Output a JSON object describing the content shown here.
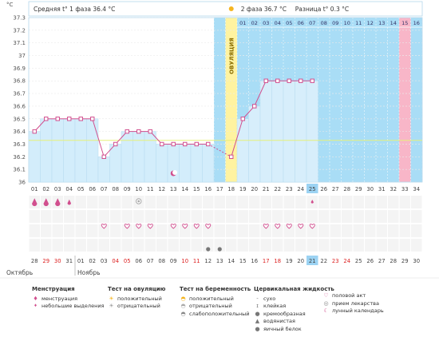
{
  "header": {
    "unit": "°C",
    "phase1": "Средняя t° 1 фаза 36.4 °C",
    "phase2": "2 фаза 36.7 °C",
    "diff": "Разница t° 0.3 °C"
  },
  "ovulation_label": "ОВУЛЯЦИЯ",
  "colors": {
    "phase1_bg": "#ffffff",
    "phase2_bg": "#a9ddf6",
    "ovulation": "#fff3a0",
    "pink": "#f8b6c8",
    "blue": "#9cd3f3",
    "bar": "#d3edfb",
    "line": "#d14f8e",
    "cover": "#a9ddf6",
    "sun": "#f5b520"
  },
  "chart_data": {
    "type": "line",
    "ylim": [
      36.0,
      37.3
    ],
    "y_ticks": [
      "37.3",
      "37.2",
      "37.1",
      "37",
      "36.9",
      "36.8",
      "36.7",
      "36.6",
      "36.5",
      "36.4",
      "36.3",
      "36.2",
      "36.1",
      "36"
    ],
    "cycle_day_labels": [
      "01",
      "02",
      "03",
      "04",
      "05",
      "06",
      "07",
      "08",
      "09",
      "10",
      "11",
      "12",
      "13",
      "14",
      "15",
      "16",
      "17",
      "18",
      "19",
      "20",
      "21",
      "22",
      "23",
      "24",
      "25",
      "26",
      "27",
      "28",
      "29",
      "30",
      "31",
      "32",
      "33",
      "34"
    ],
    "top_day_labels": [
      "",
      "",
      "",
      "",
      "",
      "",
      "",
      "",
      "",
      "",
      "",
      "",
      "",
      "",
      "",
      "",
      "",
      "",
      "01",
      "02",
      "03",
      "04",
      "05",
      "06",
      "07",
      "08",
      "09",
      "10",
      "11",
      "12",
      "13",
      "14",
      "15",
      "16"
    ],
    "temperatures": [
      36.4,
      36.5,
      36.5,
      36.5,
      36.5,
      36.5,
      36.2,
      36.3,
      36.4,
      36.4,
      36.4,
      36.3,
      36.3,
      36.3,
      36.3,
      36.3,
      null,
      36.2,
      36.5,
      36.6,
      36.8,
      36.8,
      36.8,
      36.8,
      36.8,
      null,
      null,
      null,
      null,
      null,
      null,
      null,
      null,
      null
    ],
    "baseline": 36.33,
    "calendar_dates": [
      "28",
      "29",
      "30",
      "31",
      "01",
      "02",
      "03",
      "04",
      "05",
      "06",
      "07",
      "08",
      "09",
      "10",
      "11",
      "12",
      "13",
      "14",
      "15",
      "16",
      "17",
      "18",
      "19",
      "20",
      "21",
      "22",
      "23",
      "24",
      "25",
      "26",
      "27",
      "28",
      "29",
      "30"
    ],
    "red_dates_index": [
      1,
      2,
      7,
      8,
      13,
      14,
      20,
      21,
      26,
      27
    ],
    "months": [
      "Октябрь",
      "Ноябрь"
    ],
    "highlighted_day_index": 24,
    "ovulation_day_index": 17,
    "pink_day_index": 32,
    "menstruation_days": [
      0,
      1,
      2,
      3
    ],
    "ovulation_test_days": [
      9
    ],
    "intercourse_days": [
      6,
      8,
      9,
      10,
      12,
      13,
      14,
      15,
      20,
      21,
      22,
      23,
      24
    ],
    "cervical_days": [
      15,
      16
    ],
    "lunar_day": 12
  },
  "legend": {
    "menstruation": {
      "title": "Менструация",
      "items": [
        "менструация",
        "небольшие выделения"
      ]
    },
    "ovulation_test": {
      "title": "Тест на овуляцию",
      "items": [
        "положительный",
        "отрицательный"
      ]
    },
    "pregnancy_test": {
      "title": "Тест на беременность",
      "items": [
        "положительный",
        "отрицательный",
        "слабоположительный"
      ]
    },
    "cervical": {
      "title": "Цервикальная жидкость",
      "items": [
        "сухо",
        "клейкая",
        "кремообразная",
        "водянистая",
        "яичный белок"
      ]
    },
    "other": {
      "items": [
        "половой акт",
        "прием лекарства",
        "лунный календарь"
      ]
    }
  }
}
